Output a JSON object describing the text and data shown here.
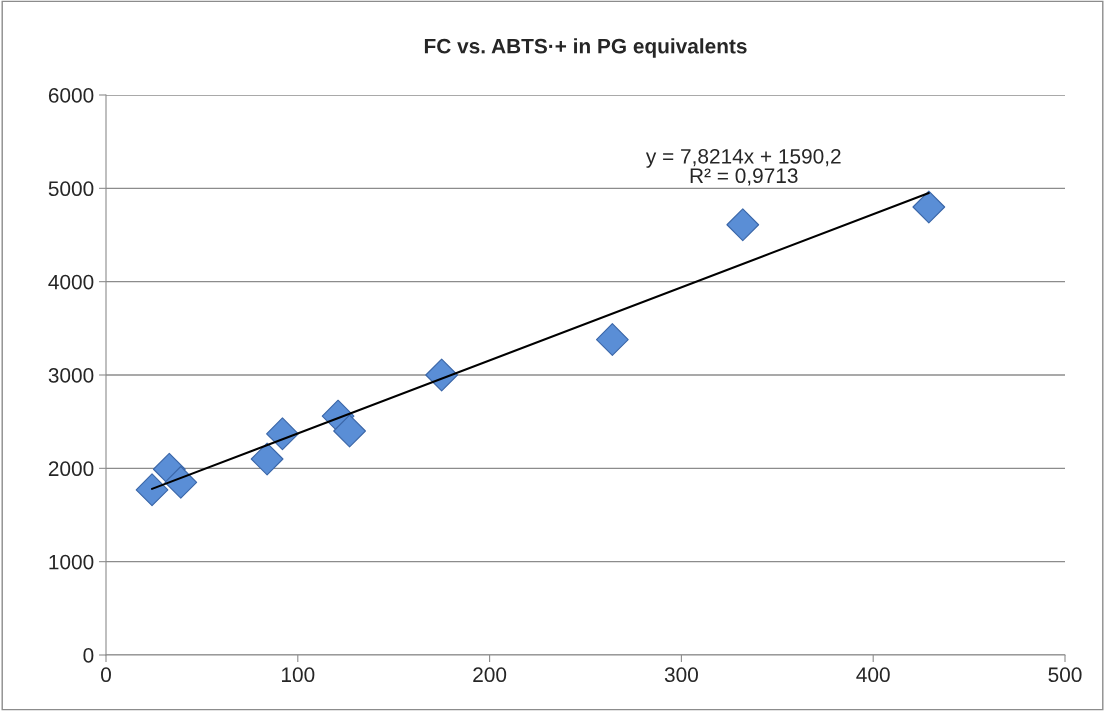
{
  "chart_data": {
    "type": "scatter",
    "title": "FC vs. ABTS·+ in PG equivalents",
    "series": [
      {
        "color": "#5a8ed6",
        "marker": "diamond",
        "x": [
          24,
          33,
          39,
          84,
          92,
          121,
          127,
          175,
          264,
          332,
          429
        ],
        "values": [
          1770,
          1990,
          1850,
          2100,
          2370,
          2560,
          2400,
          3000,
          3380,
          4610,
          4800
        ]
      },
      {
        "type": "line",
        "color": "#000000",
        "marker": "none",
        "x": [
          24,
          429
        ],
        "values": [
          1780,
          4950
        ]
      }
    ],
    "annotations": [
      "y = 7,8214x + 1590,2\nR² = 0,9713"
    ],
    "xlim": [
      0,
      500
    ],
    "xticks": [
      0,
      100,
      200,
      300,
      400,
      500
    ],
    "ylim": [
      0,
      6000
    ],
    "yticks": [
      0,
      1000,
      2000,
      3000,
      4000,
      5000,
      6000
    ],
    "grid": "y",
    "legend": false
  }
}
